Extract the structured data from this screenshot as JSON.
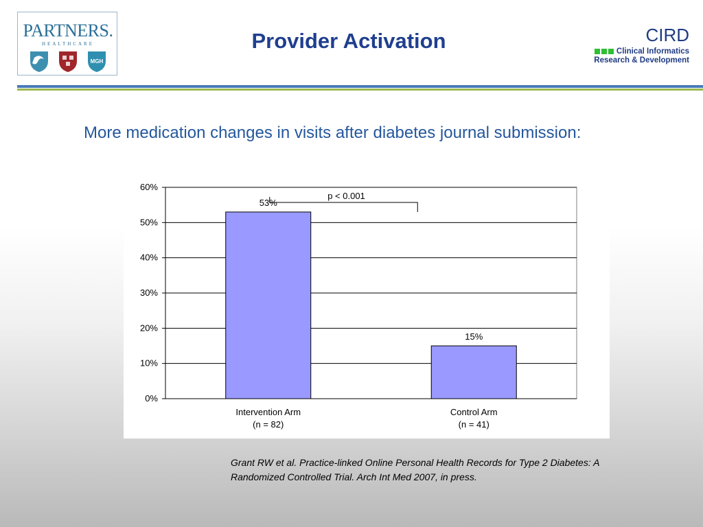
{
  "header": {
    "title": "Provider Activation",
    "partners_logo": {
      "word": "PARTNERS.",
      "sub": "HEALTHCARE"
    },
    "cird_logo": {
      "word": "CIRD",
      "line1": "Clinical Informatics",
      "line2": "Research & Development",
      "accent": "#2fbf34"
    }
  },
  "slide": {
    "subtitle": "More medication changes in visits after diabetes journal submission:",
    "citation": "Grant RW et al. Practice-linked Online Personal Health Records for Type 2 Diabetes: A Randomized Controlled Trial. Arch Int Med 2007, in press."
  },
  "chart_data": {
    "type": "bar",
    "categories": [
      "Intervention Arm\n(n = 82)",
      "Control Arm\n(n = 41)"
    ],
    "values": [
      53,
      15
    ],
    "data_labels": [
      "53%",
      "15%"
    ],
    "yticks": [
      "0%",
      "10%",
      "20%",
      "30%",
      "40%",
      "50%",
      "60%"
    ],
    "ylim": [
      0,
      60
    ],
    "grid": true,
    "annotation": "p < 0.001",
    "bar_color": "#9999ff"
  }
}
